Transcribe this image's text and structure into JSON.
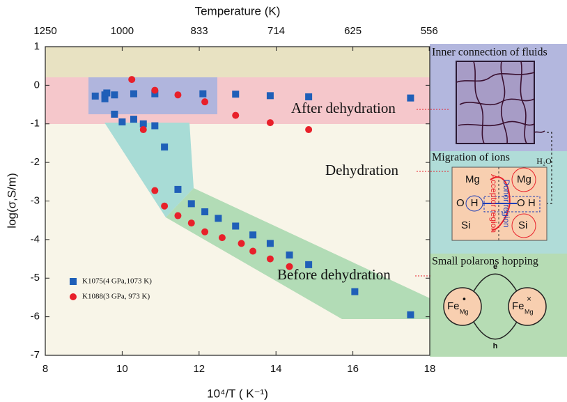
{
  "chart_data": {
    "type": "scatter",
    "x_label": "10⁴/T ( K⁻¹)",
    "y_label": "log(σ,S/m)",
    "top_axis": {
      "label": "Temperature (K)",
      "ticks": [
        1250,
        1000,
        833,
        714,
        625,
        556
      ]
    },
    "xlim": [
      8,
      18
    ],
    "xticks": [
      8,
      10,
      12,
      14,
      16,
      18
    ],
    "ylim": [
      -7,
      1
    ],
    "yticks": [
      1,
      0,
      -1,
      -2,
      -3,
      -4,
      -5,
      -6,
      -7
    ],
    "legend": "lower left",
    "series": [
      {
        "name": "K1075(4 GPa,1073 K)",
        "color": "#1f5fb8",
        "marker": "square",
        "x": [
          9.3,
          9.55,
          9.55,
          9.6,
          9.8,
          10.3,
          10.85,
          12.1,
          12.95,
          13.85,
          14.85,
          17.5,
          9.8,
          10.0,
          10.3,
          10.55,
          10.85,
          11.1,
          11.45,
          11.8,
          12.15,
          12.5,
          12.95,
          13.4,
          13.85,
          14.35,
          14.85,
          16.05,
          17.5
        ],
        "values": [
          -0.28,
          -0.25,
          -0.35,
          -0.2,
          -0.25,
          -0.22,
          -0.22,
          -0.22,
          -0.23,
          -0.27,
          -0.3,
          -0.33,
          -0.75,
          -0.95,
          -0.88,
          -1.0,
          -1.05,
          -1.6,
          -2.7,
          -3.07,
          -3.28,
          -3.45,
          -3.65,
          -3.88,
          -4.1,
          -4.4,
          -4.65,
          -5.35,
          -5.95
        ]
      },
      {
        "name": "K1088(3 GPa, 973 K)",
        "color": "#e8202a",
        "marker": "circle",
        "x": [
          10.25,
          10.85,
          11.45,
          12.15,
          12.95,
          13.85,
          14.85,
          10.55,
          10.85,
          11.1,
          11.45,
          11.8,
          12.15,
          12.6,
          13.1,
          13.4,
          13.85,
          14.35
        ],
        "values": [
          0.15,
          -0.13,
          -0.25,
          -0.43,
          -0.78,
          -0.97,
          -1.15,
          -1.15,
          -2.73,
          -3.13,
          -3.38,
          -3.57,
          -3.8,
          -3.95,
          -4.1,
          -4.3,
          -4.5,
          -4.7
        ]
      }
    ],
    "annotations": [
      "After dehydration",
      "Dehydration",
      "Before dehydration"
    ],
    "panels": {
      "fluids": {
        "title": "Inner connection of fluids",
        "water": "H₂O"
      },
      "migration": {
        "title": "Migration of  ions",
        "mg_left": "Mg",
        "mg_right": "Mg",
        "o_left": "O",
        "h_left": "H",
        "oh_right": "O H",
        "si_left": "Si",
        "si_right": "Si",
        "acceptor": "Acceptor region",
        "donor": "Donor region"
      },
      "polarons": {
        "title": "Small polarons hopping",
        "fe": "Fe",
        "sub": "Mg",
        "left_sup": "•",
        "right_sup": "×",
        "e": "e",
        "h": "h"
      }
    }
  }
}
